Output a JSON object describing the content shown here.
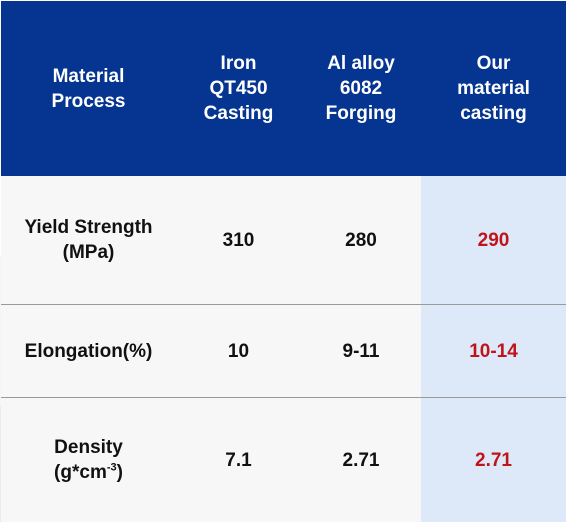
{
  "columns": [
    {
      "lines": [
        "Material",
        "Process"
      ]
    },
    {
      "lines": [
        "Iron",
        "QT450",
        "Casting"
      ]
    },
    {
      "lines": [
        "Al alloy",
        "6082",
        "Forging"
      ]
    },
    {
      "lines": [
        "Our",
        "material",
        "casting"
      ]
    }
  ],
  "rows": [
    {
      "label_lines": [
        "Yield Strength",
        "(MPa)"
      ],
      "iron": "310",
      "al": "280",
      "ours": "290"
    },
    {
      "label_lines": [
        "Elongation(%)"
      ],
      "iron": "10",
      "al": "9-11",
      "ours": "10-14"
    },
    {
      "label_pre": "Density",
      "label_unit_base": "(g*cm",
      "label_unit_sup": "-3",
      "label_unit_end": ")",
      "iron": "7.1",
      "al": "2.71",
      "ours": "2.71"
    }
  ],
  "colors": {
    "header_bg": "#053491",
    "header_text": "#ffffff",
    "highlight_col_bg": "#dde9f9",
    "highlight_text": "#c0141b"
  }
}
